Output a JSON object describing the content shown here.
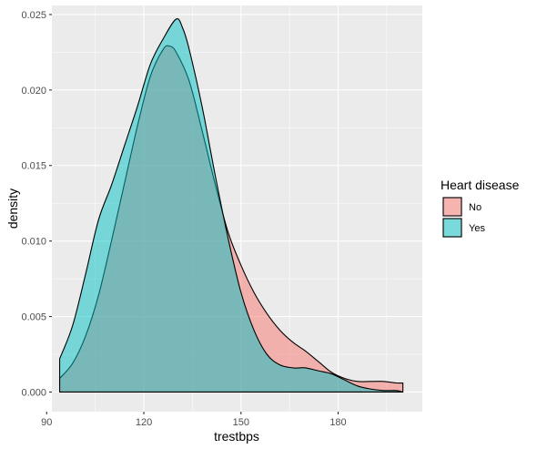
{
  "chart_data": {
    "type": "area",
    "chart_kind": "density",
    "xlabel": "trestbps",
    "ylabel": "density",
    "xlim": [
      91.6,
      206.0
    ],
    "ylim": [
      -0.0013,
      0.0256
    ],
    "x_ticks": [
      90,
      120,
      150,
      180
    ],
    "y_ticks": [
      0.0,
      0.005,
      0.01,
      0.015,
      0.02,
      0.025
    ],
    "x_tick_labels": [
      "90",
      "120",
      "150",
      "180"
    ],
    "y_tick_labels": [
      "0.000",
      "0.005",
      "0.010",
      "0.015",
      "0.020",
      "0.025"
    ],
    "grid": true,
    "panel_background": "#ebebeb",
    "legend": {
      "title": "Heart disease",
      "position": "right",
      "entries": [
        "No",
        "Yes"
      ]
    },
    "series": [
      {
        "name": "No",
        "color": "#f8766d",
        "x": [
          94,
          98,
          102,
          106,
          110,
          114,
          118,
          122,
          126,
          128,
          130,
          134,
          138,
          142,
          146,
          150,
          154,
          158,
          162,
          166,
          170,
          174,
          178,
          182,
          186,
          190,
          194,
          198,
          200
        ],
        "values": [
          0.0009,
          0.0019,
          0.0037,
          0.0064,
          0.01,
          0.0138,
          0.0176,
          0.0209,
          0.0227,
          0.0229,
          0.0225,
          0.0206,
          0.0173,
          0.0138,
          0.0106,
          0.0084,
          0.0066,
          0.0052,
          0.0041,
          0.0033,
          0.0027,
          0.002,
          0.0013,
          0.0009,
          0.0007,
          0.0007,
          0.0007,
          0.0006,
          0.0006
        ]
      },
      {
        "name": "Yes",
        "color": "#00bfc4",
        "x": [
          94,
          98,
          102,
          106,
          110,
          114,
          118,
          122,
          126,
          130,
          132,
          134,
          138,
          142,
          146,
          150,
          154,
          158,
          162,
          166,
          168,
          170,
          174,
          178,
          182,
          186,
          190,
          194,
          198,
          200
        ],
        "values": [
          0.0022,
          0.0044,
          0.0078,
          0.0114,
          0.0137,
          0.0163,
          0.0189,
          0.0217,
          0.0234,
          0.0247,
          0.0241,
          0.0227,
          0.0189,
          0.0144,
          0.0102,
          0.0066,
          0.0041,
          0.0025,
          0.0018,
          0.0016,
          0.0016,
          0.0016,
          0.0014,
          0.0012,
          0.0008,
          0.0004,
          0.0002,
          0.0001,
          0.0001,
          0.0
        ]
      }
    ]
  }
}
